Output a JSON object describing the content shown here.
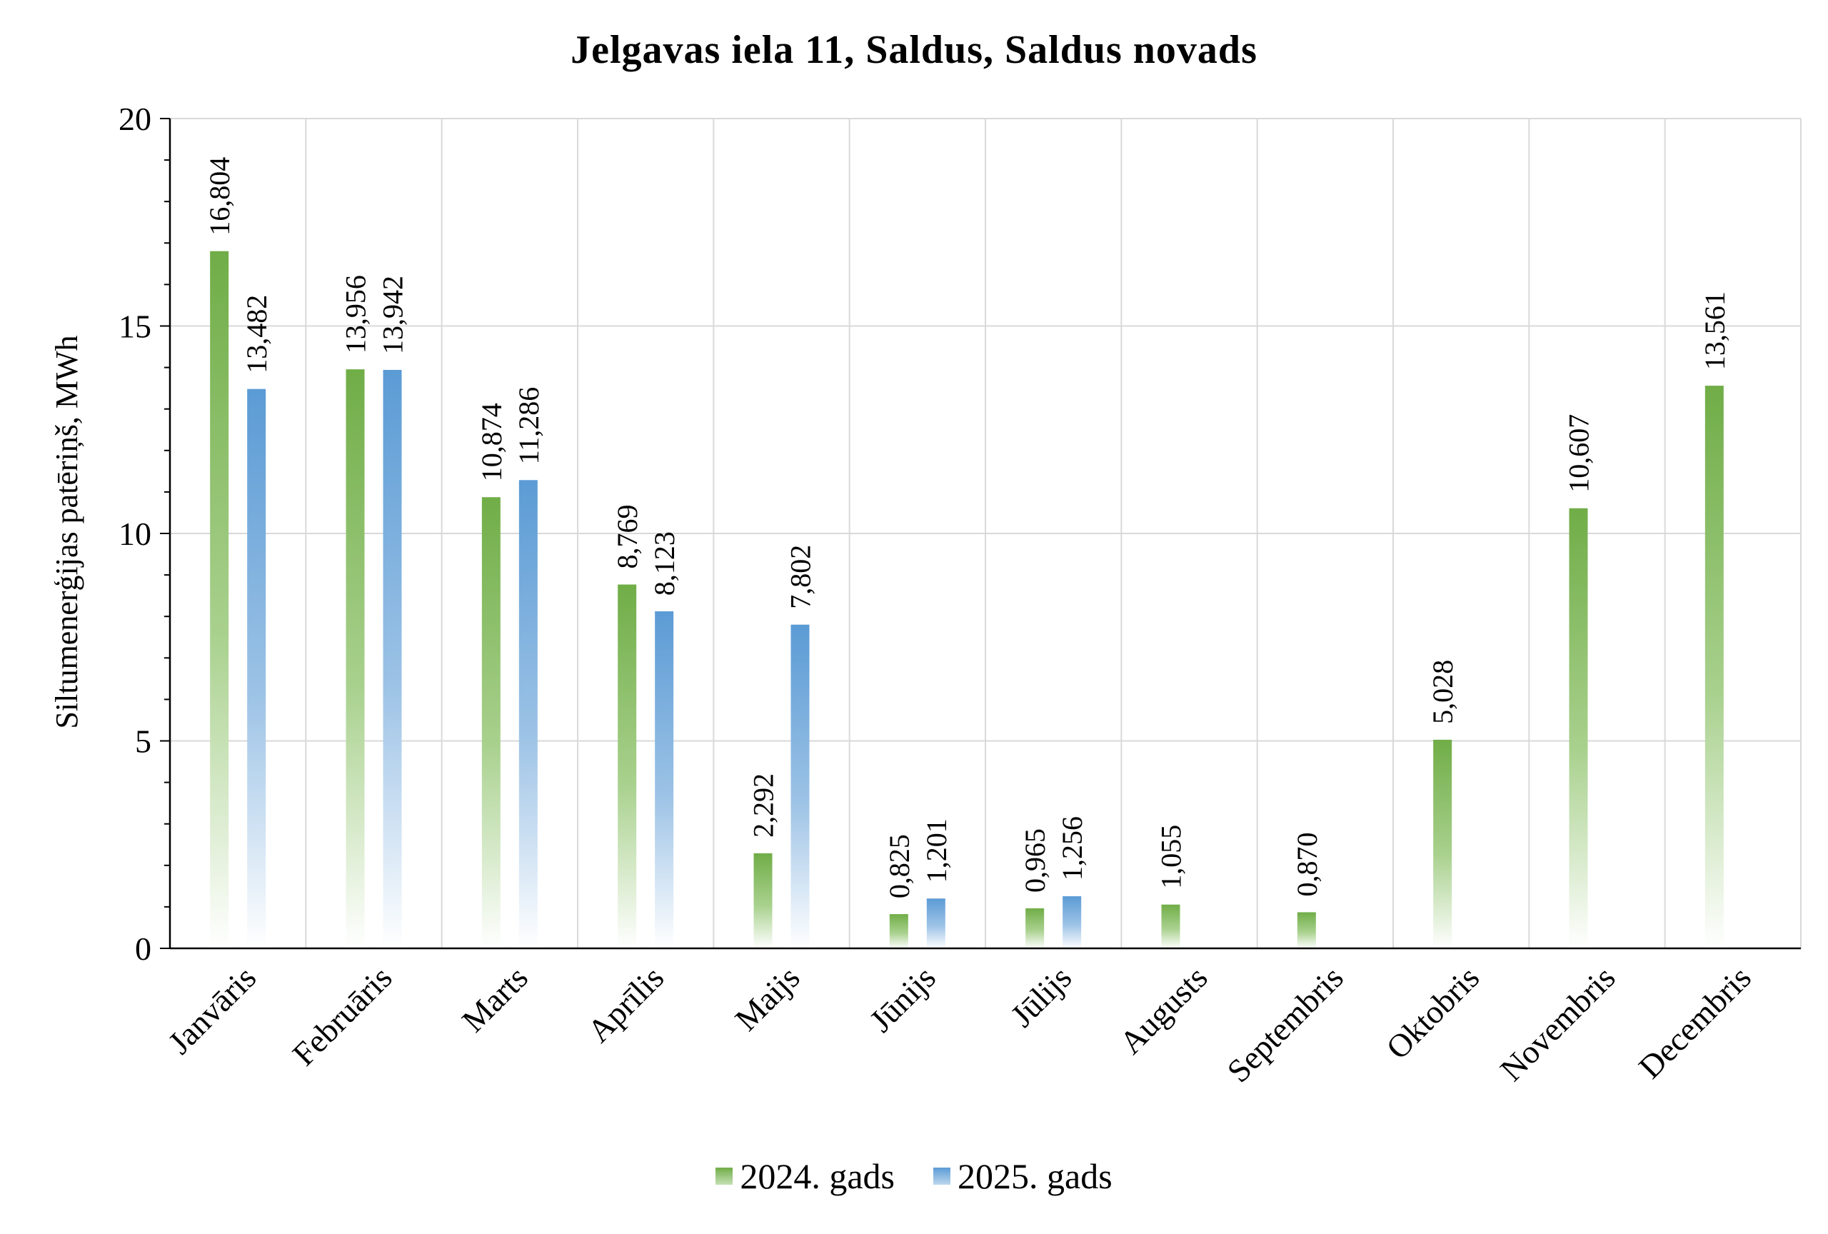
{
  "chart_data": {
    "type": "bar",
    "title": "Jelgavas iela 11, Saldus, Saldus novads",
    "xlabel": "",
    "ylabel": "Siltumenerģijas patēriņš, MWh",
    "ylim": [
      0,
      20
    ],
    "yticks": [
      "0",
      "5",
      "10",
      "15",
      "20"
    ],
    "grid": true,
    "legend_position": "bottom",
    "categories": [
      "Janvāris",
      "Februāris",
      "Marts",
      "Aprīlis",
      "Maijs",
      "Jūnijs",
      "Jūlijs",
      "Augusts",
      "Septembris",
      "Oktobris",
      "Novembris",
      "Decembris"
    ],
    "series": [
      {
        "name": "2024. gads",
        "color": "#70ad47",
        "values": [
          16.804,
          13.956,
          10.874,
          8.769,
          2.292,
          0.825,
          0.965,
          1.055,
          0.87,
          5.028,
          10.607,
          13.561
        ],
        "labels": [
          "16,804",
          "13,956",
          "10,874",
          "8,769",
          "2,292",
          "0,825",
          "0,965",
          "1,055",
          "0,870",
          "5,028",
          "10,607",
          "13,561"
        ]
      },
      {
        "name": "2025. gads",
        "color": "#5b9bd5",
        "values": [
          13.482,
          13.942,
          11.286,
          8.123,
          7.802,
          1.201,
          1.256,
          null,
          null,
          null,
          null,
          null
        ],
        "labels": [
          "13,482",
          "13,942",
          "11,286",
          "8,123",
          "7,802",
          "1,201",
          "1,256",
          null,
          null,
          null,
          null,
          null
        ]
      }
    ]
  }
}
